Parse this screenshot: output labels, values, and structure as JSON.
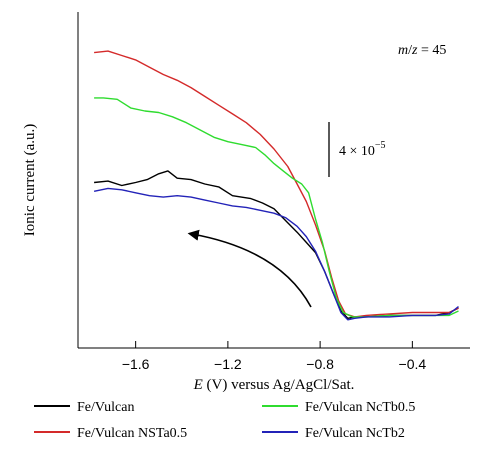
{
  "chart_data": {
    "type": "line",
    "title": "",
    "xlabel": "E (V) versus Ag/AgCl/Sat.",
    "ylabel": "Ionic current (a.u.)",
    "xlim": [
      -1.85,
      -0.15
    ],
    "ylim": [
      0,
      1
    ],
    "x_ticks": [
      -1.6,
      -1.2,
      -0.8,
      -0.4
    ],
    "x_tick_labels": [
      "−1.6",
      "−1.2",
      "−0.8",
      "−0.4"
    ],
    "annotation_mz": "m/z = 45",
    "scale_bar_label": "4 × 10",
    "scale_bar_exponent": "−5",
    "legend_position": "bottom",
    "grid": false,
    "series": [
      {
        "name": "Fe/Vulcan",
        "color": "#000000",
        "points": [
          [
            -1.78,
            0.505
          ],
          [
            -1.72,
            0.51
          ],
          [
            -1.66,
            0.495
          ],
          [
            -1.6,
            0.505
          ],
          [
            -1.55,
            0.515
          ],
          [
            -1.5,
            0.535
          ],
          [
            -1.46,
            0.545
          ],
          [
            -1.42,
            0.52
          ],
          [
            -1.36,
            0.515
          ],
          [
            -1.3,
            0.5
          ],
          [
            -1.24,
            0.49
          ],
          [
            -1.18,
            0.46
          ],
          [
            -1.1,
            0.45
          ],
          [
            -1.05,
            0.435
          ],
          [
            -1.0,
            0.415
          ],
          [
            -0.95,
            0.375
          ],
          [
            -0.9,
            0.335
          ],
          [
            -0.86,
            0.3
          ],
          [
            -0.82,
            0.265
          ],
          [
            -0.78,
            0.2
          ],
          [
            -0.74,
            0.12
          ],
          [
            -0.71,
            0.065
          ],
          [
            -0.68,
            0.04
          ],
          [
            -0.65,
            0.045
          ],
          [
            -0.6,
            0.045
          ],
          [
            -0.5,
            0.05
          ],
          [
            -0.4,
            0.05
          ],
          [
            -0.3,
            0.05
          ],
          [
            -0.24,
            0.06
          ],
          [
            -0.2,
            0.075
          ]
        ]
      },
      {
        "name": "Fe/Vulcan NSTa0.5",
        "color": "#d42a2a",
        "points": [
          [
            -1.78,
            0.95
          ],
          [
            -1.72,
            0.955
          ],
          [
            -1.66,
            0.94
          ],
          [
            -1.6,
            0.925
          ],
          [
            -1.54,
            0.9
          ],
          [
            -1.48,
            0.875
          ],
          [
            -1.42,
            0.855
          ],
          [
            -1.36,
            0.83
          ],
          [
            -1.3,
            0.8
          ],
          [
            -1.24,
            0.77
          ],
          [
            -1.18,
            0.74
          ],
          [
            -1.12,
            0.71
          ],
          [
            -1.06,
            0.67
          ],
          [
            -1.0,
            0.62
          ],
          [
            -0.94,
            0.56
          ],
          [
            -0.9,
            0.5
          ],
          [
            -0.86,
            0.44
          ],
          [
            -0.82,
            0.36
          ],
          [
            -0.78,
            0.27
          ],
          [
            -0.75,
            0.18
          ],
          [
            -0.72,
            0.1
          ],
          [
            -0.69,
            0.055
          ],
          [
            -0.65,
            0.045
          ],
          [
            -0.6,
            0.05
          ],
          [
            -0.5,
            0.055
          ],
          [
            -0.4,
            0.06
          ],
          [
            -0.3,
            0.06
          ],
          [
            -0.24,
            0.06
          ],
          [
            -0.2,
            0.075
          ]
        ]
      },
      {
        "name": "Fe/Vulcan NcTb0.5",
        "color": "#2fdc2f",
        "points": [
          [
            -1.78,
            0.795
          ],
          [
            -1.74,
            0.795
          ],
          [
            -1.68,
            0.79
          ],
          [
            -1.62,
            0.76
          ],
          [
            -1.56,
            0.75
          ],
          [
            -1.5,
            0.745
          ],
          [
            -1.44,
            0.73
          ],
          [
            -1.38,
            0.71
          ],
          [
            -1.32,
            0.685
          ],
          [
            -1.26,
            0.66
          ],
          [
            -1.2,
            0.645
          ],
          [
            -1.14,
            0.635
          ],
          [
            -1.08,
            0.625
          ],
          [
            -1.04,
            0.6
          ],
          [
            -1.0,
            0.57
          ],
          [
            -0.96,
            0.545
          ],
          [
            -0.92,
            0.52
          ],
          [
            -0.88,
            0.5
          ],
          [
            -0.85,
            0.47
          ],
          [
            -0.82,
            0.38
          ],
          [
            -0.79,
            0.3
          ],
          [
            -0.76,
            0.2
          ],
          [
            -0.73,
            0.11
          ],
          [
            -0.7,
            0.06
          ],
          [
            -0.66,
            0.045
          ],
          [
            -0.6,
            0.045
          ],
          [
            -0.5,
            0.05
          ],
          [
            -0.4,
            0.05
          ],
          [
            -0.3,
            0.05
          ],
          [
            -0.24,
            0.05
          ],
          [
            -0.2,
            0.065
          ]
        ]
      },
      {
        "name": "Fe/Vulcan NcTb2",
        "color": "#2323b8",
        "points": [
          [
            -1.78,
            0.475
          ],
          [
            -1.72,
            0.485
          ],
          [
            -1.66,
            0.48
          ],
          [
            -1.6,
            0.47
          ],
          [
            -1.54,
            0.46
          ],
          [
            -1.48,
            0.455
          ],
          [
            -1.42,
            0.46
          ],
          [
            -1.36,
            0.455
          ],
          [
            -1.3,
            0.445
          ],
          [
            -1.24,
            0.435
          ],
          [
            -1.18,
            0.425
          ],
          [
            -1.12,
            0.42
          ],
          [
            -1.06,
            0.41
          ],
          [
            -1.0,
            0.4
          ],
          [
            -0.95,
            0.385
          ],
          [
            -0.9,
            0.355
          ],
          [
            -0.86,
            0.32
          ],
          [
            -0.82,
            0.27
          ],
          [
            -0.78,
            0.2
          ],
          [
            -0.74,
            0.12
          ],
          [
            -0.71,
            0.06
          ],
          [
            -0.68,
            0.035
          ],
          [
            -0.65,
            0.04
          ],
          [
            -0.6,
            0.045
          ],
          [
            -0.5,
            0.045
          ],
          [
            -0.4,
            0.05
          ],
          [
            -0.3,
            0.05
          ],
          [
            -0.24,
            0.055
          ],
          [
            -0.2,
            0.08
          ]
        ]
      }
    ]
  }
}
